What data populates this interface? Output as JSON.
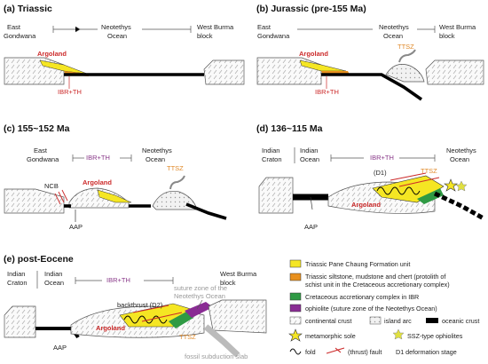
{
  "panels": {
    "a": {
      "title": "(a) Triassic",
      "left_block": [
        "East",
        "Gondwana"
      ],
      "ocean": [
        "Neotethys",
        "Ocean"
      ],
      "right_block": [
        "West Burma",
        "block"
      ],
      "argoland": "Argoland",
      "ibr_th": "IBR+TH"
    },
    "b": {
      "title": "(b) Jurassic (pre-155 Ma)",
      "left_block": [
        "East",
        "Gondwana"
      ],
      "ocean": [
        "Neotethys",
        "Ocean"
      ],
      "right_block": [
        "West Burma",
        "block"
      ],
      "argoland": "Argoland",
      "ibr_th": "IBR+TH",
      "ttsz": "TTSZ"
    },
    "c": {
      "title": "(c) 155~152 Ma",
      "left_block": [
        "East",
        "Gondwana"
      ],
      "ibr_th": "IBR+TH",
      "ocean": [
        "Neotethys",
        "Ocean"
      ],
      "ncb": "NCB",
      "argoland": "Argoland",
      "ttsz": "TTSZ",
      "aap": "AAP"
    },
    "d": {
      "title": "(d) 136~115 Ma",
      "craton": [
        "Indian",
        "Craton"
      ],
      "indian_ocean": [
        "Indian",
        "Ocean"
      ],
      "ibr_th": "IBR+TH",
      "ocean": [
        "Neotethys",
        "Ocean"
      ],
      "d1": "(D1)",
      "ttsz": "TTSZ",
      "argoland": "Argoland",
      "aap": "AAP"
    },
    "e": {
      "title": "(e) post-Eocene",
      "craton": [
        "Indian",
        "Craton"
      ],
      "indian_ocean": [
        "Indian",
        "Ocean"
      ],
      "ibr_th": "IBR+TH",
      "right_block": [
        "West Burma",
        "block"
      ],
      "suture": [
        "suture zone of the",
        "Neotethys Ocean"
      ],
      "backthrust": "backthrust (D2)",
      "argoland": "Argoland",
      "ttsz": "TTSZ",
      "slab": "fossil subduction slab",
      "aap": "AAP"
    }
  },
  "legend": {
    "triassic_unit": "Triassic Pane Chaung Formation unit",
    "triassic_silt": [
      "Triassic siltstone, mudstone and chert (protolith of",
      "schist unit in the Cretaceous accretionary complex)"
    ],
    "cretaceous": "Cretaceous accretionary complex in IBR",
    "ophiolite": "ophiolite (suture zone of the Neotethys Ocean)",
    "continental": "continental crust",
    "island_arc": "island arc",
    "oceanic": "oceanic crust",
    "metamorphic": "metamorphic sole",
    "ssz": "SSZ-type ophiolites",
    "fold": "fold",
    "fault": "(thrust) fault",
    "d1": "D1 deformation stage"
  },
  "colors": {
    "yellow": "#f5e623",
    "orange": "#e8901e",
    "green": "#2f9a44",
    "purple": "#8a2c94",
    "red": "#cc2a2a",
    "ibr_purple": "#8a3a8a",
    "ttsz_orange": "#e08a2a"
  }
}
